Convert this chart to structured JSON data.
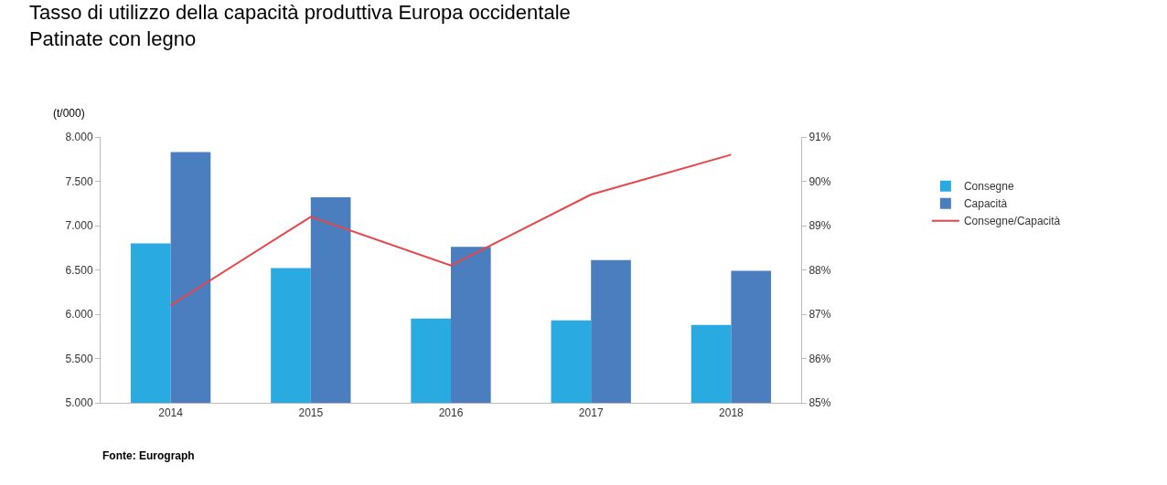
{
  "chart_data": {
    "type": "bar",
    "title": "Tasso di utilizzo della capacità produttiva Europa occidentale\nPatinate con legno",
    "ylabel": "(t/000)",
    "categories": [
      "2014",
      "2015",
      "2016",
      "2017",
      "2018"
    ],
    "series": [
      {
        "name": "Consegne",
        "color": "#29abe2",
        "values": [
          6800,
          6520,
          5950,
          5930,
          5880
        ]
      },
      {
        "name": "Capacità",
        "color": "#4a7ebf",
        "values": [
          7830,
          7320,
          6760,
          6610,
          6490
        ]
      },
      {
        "name": "Consegne/Capacità",
        "type": "line",
        "axis": "y2",
        "color": "#e8454a",
        "values": [
          87.2,
          89.2,
          88.1,
          89.7,
          90.6
        ]
      }
    ],
    "ylim": [
      5000,
      8000
    ],
    "yticks": [
      {
        "value": 5000,
        "label": "5.000"
      },
      {
        "value": 5500,
        "label": "5.500"
      },
      {
        "value": 6000,
        "label": "6.000"
      },
      {
        "value": 6500,
        "label": "6.500"
      },
      {
        "value": 7000,
        "label": "7.000"
      },
      {
        "value": 7500,
        "label": "7.500"
      },
      {
        "value": 8000,
        "label": "8.000"
      }
    ],
    "y2lim": [
      85,
      91
    ],
    "y2ticks": [
      {
        "value": 85,
        "label": "85%"
      },
      {
        "value": 86,
        "label": "86%"
      },
      {
        "value": 87,
        "label": "87%"
      },
      {
        "value": 88,
        "label": "88%"
      },
      {
        "value": 89,
        "label": "89%"
      },
      {
        "value": 90,
        "label": "90%"
      },
      {
        "value": 91,
        "label": "91%"
      }
    ],
    "grid": false,
    "legend": "right",
    "marker": "none",
    "line_style": "solid",
    "annotations": [
      "Fonte: Eurograph"
    ]
  }
}
